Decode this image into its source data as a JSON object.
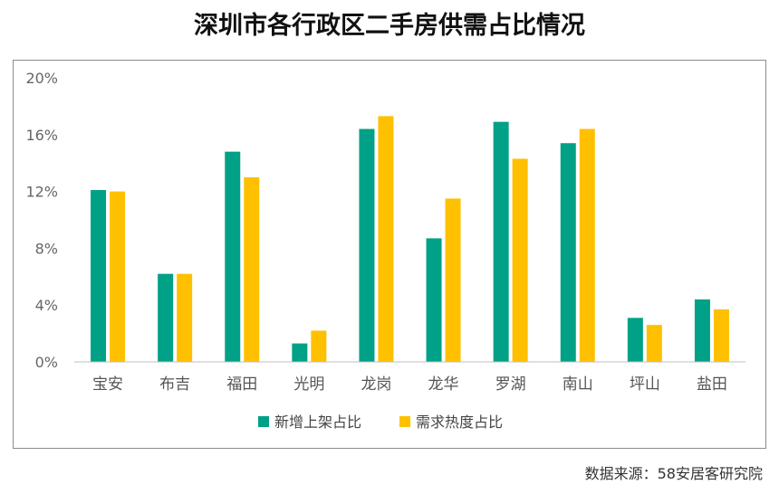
{
  "title": "深圳市各行政区二手房供需占比情况",
  "source": "数据来源：58安居客研究院",
  "chart_data": {
    "type": "bar",
    "title": "深圳市各行政区二手房供需占比情况",
    "categories": [
      "宝安",
      "布吉",
      "福田",
      "光明",
      "龙岗",
      "龙华",
      "罗湖",
      "南山",
      "坪山",
      "盐田"
    ],
    "series": [
      {
        "name": "新增上架占比",
        "color": "#00A186",
        "values": [
          12.1,
          6.2,
          14.8,
          1.3,
          16.4,
          8.7,
          16.9,
          15.4,
          3.1,
          4.4
        ]
      },
      {
        "name": "需求热度占比",
        "color": "#FFC000",
        "values": [
          12.0,
          6.2,
          13.0,
          2.2,
          17.3,
          11.5,
          14.3,
          16.4,
          2.6,
          3.7
        ]
      }
    ],
    "ylim": [
      0,
      20
    ],
    "yticks": [
      "0%",
      "4%",
      "8%",
      "12%",
      "16%",
      "20%"
    ],
    "ytick_values": [
      0,
      4,
      8,
      12,
      16,
      20
    ],
    "grid": false,
    "legend": "bottom-center"
  }
}
